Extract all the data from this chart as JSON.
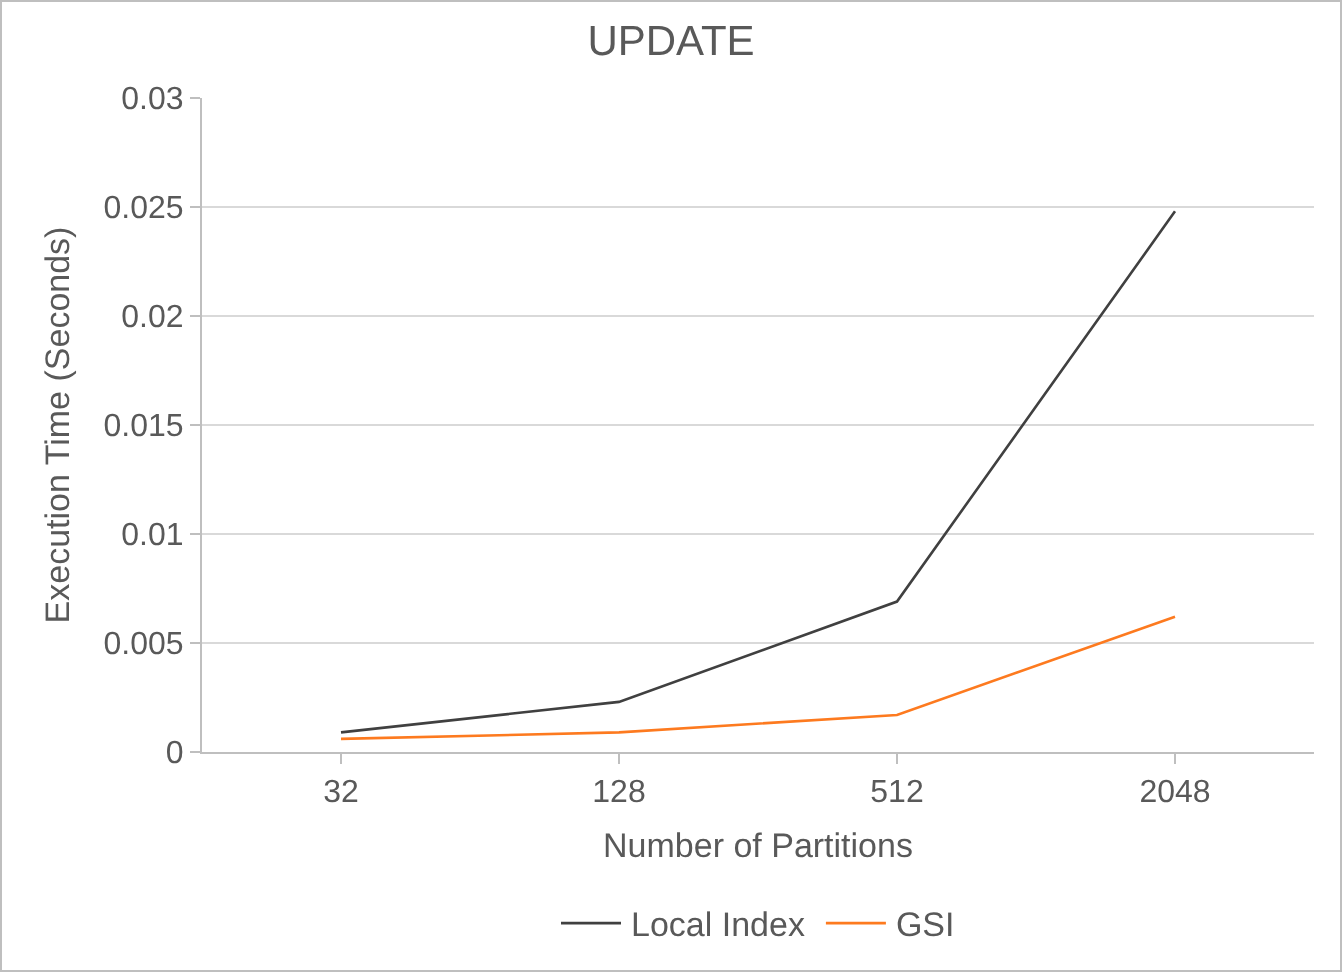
{
  "chart_data": {
    "type": "line",
    "title": "UPDATE",
    "xlabel": "Number of Partitions",
    "ylabel": "Execution Time (Seconds)",
    "categories": [
      "32",
      "128",
      "512",
      "2048"
    ],
    "series": [
      {
        "name": "Local Index",
        "color": "#404040",
        "values": [
          0.0009,
          0.0023,
          0.0069,
          0.0248
        ]
      },
      {
        "name": "GSI",
        "color": "#fd7a1f",
        "values": [
          0.0006,
          0.0009,
          0.0017,
          0.0062
        ]
      }
    ],
    "ylim": [
      0,
      0.03
    ],
    "yticks": [
      0,
      0.005,
      0.01,
      0.015,
      0.02,
      0.025,
      0.03
    ],
    "grid": "y",
    "legend": "bottom",
    "marker": "none",
    "line_style": "solid"
  }
}
